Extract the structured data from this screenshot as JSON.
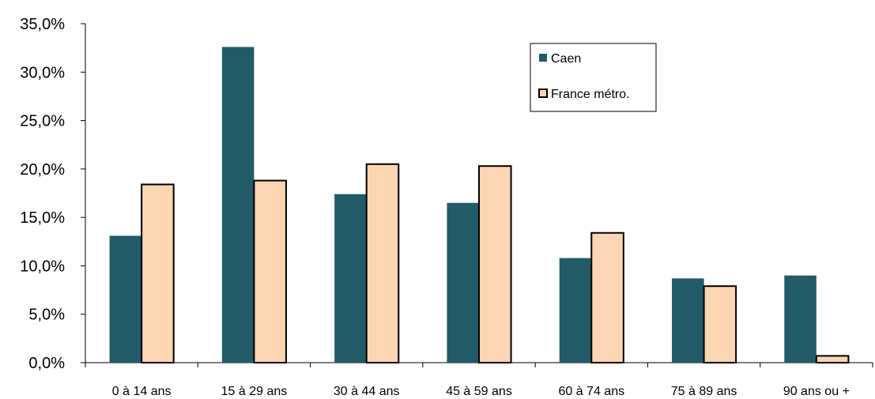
{
  "chart_data": {
    "type": "bar",
    "title": "",
    "xlabel": "",
    "ylabel": "",
    "categories": [
      "0 à 14 ans",
      "15 à 29 ans",
      "30 à 44 ans",
      "45 à 59 ans",
      "60 à 74 ans",
      "75 à 89 ans",
      "90 ans ou +"
    ],
    "series": [
      {
        "name": "Caen",
        "color": "#235a68",
        "values": [
          13.1,
          32.6,
          17.4,
          16.5,
          10.8,
          8.7,
          9.0
        ]
      },
      {
        "name": "France métro.",
        "color": "#fcd5b4",
        "values": [
          18.4,
          18.8,
          20.5,
          20.3,
          13.4,
          7.9,
          0.7
        ]
      }
    ],
    "ylim": [
      0,
      35
    ],
    "yticks": [
      0,
      5,
      10,
      15,
      20,
      25,
      30,
      35
    ],
    "ytick_labels": [
      "0,0%",
      "5,0%",
      "10,0%",
      "15,0%",
      "20,0%",
      "25,0%",
      "30,0%",
      "35,0%"
    ],
    "grid": false,
    "legend_position": "top-right"
  }
}
